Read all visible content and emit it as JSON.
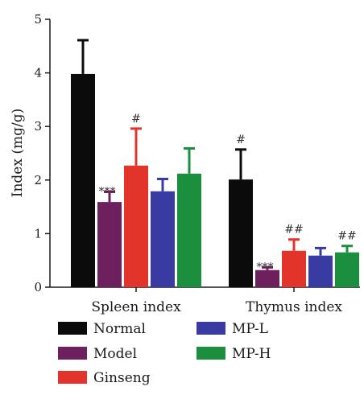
{
  "chart_data": {
    "type": "bar",
    "ylabel": "Index (mg/g)",
    "xlabel": "",
    "title": "",
    "ylim": [
      0,
      5
    ],
    "yticks": [
      "0",
      "1",
      "2",
      "3",
      "4",
      "5"
    ],
    "categories": [
      "Spleen index",
      "Thymus index"
    ],
    "series": [
      {
        "name": "Normal",
        "color": "#0b0b0b",
        "values": [
          3.98,
          2.01
        ],
        "errors": [
          0.63,
          0.56
        ]
      },
      {
        "name": "Model",
        "color": "#6e1f5e",
        "values": [
          1.59,
          0.32
        ],
        "errors": [
          0.19,
          0.05
        ]
      },
      {
        "name": "Ginseng",
        "color": "#e2342b",
        "values": [
          2.27,
          0.68
        ],
        "errors": [
          0.69,
          0.21
        ]
      },
      {
        "name": "MP-L",
        "color": "#3a3aa3",
        "values": [
          1.79,
          0.59
        ],
        "errors": [
          0.23,
          0.14
        ]
      },
      {
        "name": "MP-H",
        "color": "#1b8f3e",
        "values": [
          2.12,
          0.65
        ],
        "errors": [
          0.47,
          0.12
        ]
      }
    ],
    "annotations": [
      {
        "category": 0,
        "series": 1,
        "text": "***"
      },
      {
        "category": 0,
        "series": 2,
        "text": "#"
      },
      {
        "category": 1,
        "series": 0,
        "text": "#"
      },
      {
        "category": 1,
        "series": 1,
        "text": "***"
      },
      {
        "category": 1,
        "series": 2,
        "text": "##"
      },
      {
        "category": 1,
        "series": 4,
        "text": "##"
      }
    ],
    "legend_position": "bottom"
  }
}
